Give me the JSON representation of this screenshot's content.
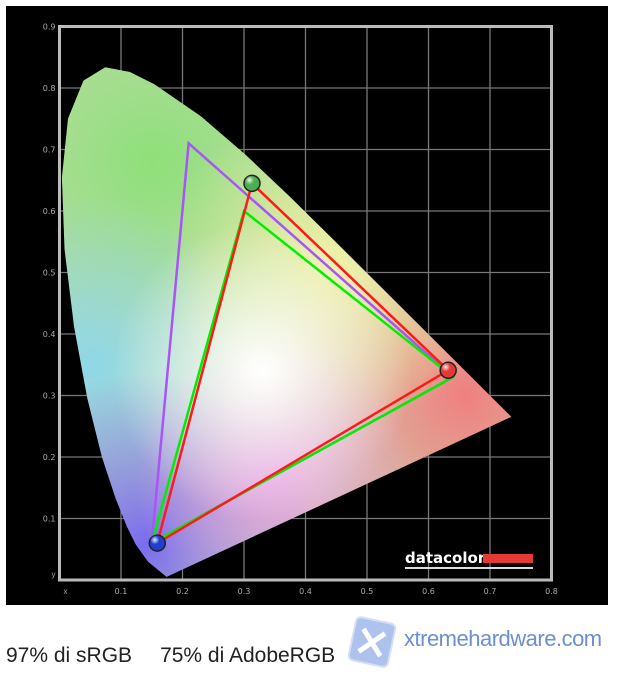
{
  "chart_data": {
    "type": "scatter",
    "subtype": "CIE 1931 xy chromaticity diagram",
    "xlabel": "x",
    "ylabel": "y",
    "xlim": [
      0,
      0.8
    ],
    "ylim": [
      0,
      0.9
    ],
    "x_ticks": [
      "0.1",
      "0.2",
      "0.3",
      "0.4",
      "0.5",
      "0.6",
      "0.7",
      "0.8"
    ],
    "y_ticks": [
      "0.1",
      "0.2",
      "0.3",
      "0.4",
      "0.5",
      "0.6",
      "0.7",
      "0.8",
      "0.9"
    ],
    "grid": true,
    "spectral_locus": [
      [
        0.1741,
        0.005
      ],
      [
        0.144,
        0.0297
      ],
      [
        0.1241,
        0.0578
      ],
      [
        0.1096,
        0.0868
      ],
      [
        0.0913,
        0.1327
      ],
      [
        0.0687,
        0.2007
      ],
      [
        0.0454,
        0.295
      ],
      [
        0.0235,
        0.4127
      ],
      [
        0.0082,
        0.5384
      ],
      [
        0.0039,
        0.6548
      ],
      [
        0.0139,
        0.7502
      ],
      [
        0.0389,
        0.812
      ],
      [
        0.0743,
        0.8338
      ],
      [
        0.1142,
        0.8262
      ],
      [
        0.1547,
        0.8059
      ],
      [
        0.2296,
        0.7543
      ],
      [
        0.3016,
        0.6923
      ],
      [
        0.3731,
        0.6245
      ],
      [
        0.4441,
        0.5547
      ],
      [
        0.5125,
        0.4866
      ],
      [
        0.5752,
        0.4242
      ],
      [
        0.627,
        0.3725
      ],
      [
        0.6915,
        0.3083
      ],
      [
        0.7347,
        0.2653
      ]
    ],
    "series": [
      {
        "color": "#a855f7",
        "points": [
          [
            0.21,
            0.71
          ],
          [
            0.64,
            0.33
          ],
          [
            0.15,
            0.06
          ]
        ]
      },
      {
        "color": "#00ee00",
        "points": [
          [
            0.3,
            0.6
          ],
          [
            0.64,
            0.33
          ],
          [
            0.15,
            0.06
          ]
        ]
      },
      {
        "color": "#ff1a1a",
        "points": [
          [
            0.313,
            0.645
          ],
          [
            0.632,
            0.341
          ],
          [
            0.159,
            0.06
          ]
        ]
      }
    ],
    "markers": [
      {
        "color": "#4caf50",
        "point": [
          0.313,
          0.645
        ]
      },
      {
        "color": "#e53935",
        "point": [
          0.632,
          0.341
        ]
      },
      {
        "color": "#1e3fd0",
        "point": [
          0.159,
          0.06
        ]
      }
    ]
  },
  "logo": {
    "text": "datacolor",
    "bar_color": "#e53935"
  },
  "caption": {
    "srgb": "97% di sRGB",
    "adobergb": "75% di AdobeRGB"
  },
  "watermark": {
    "text": "xtremehardware.com"
  }
}
